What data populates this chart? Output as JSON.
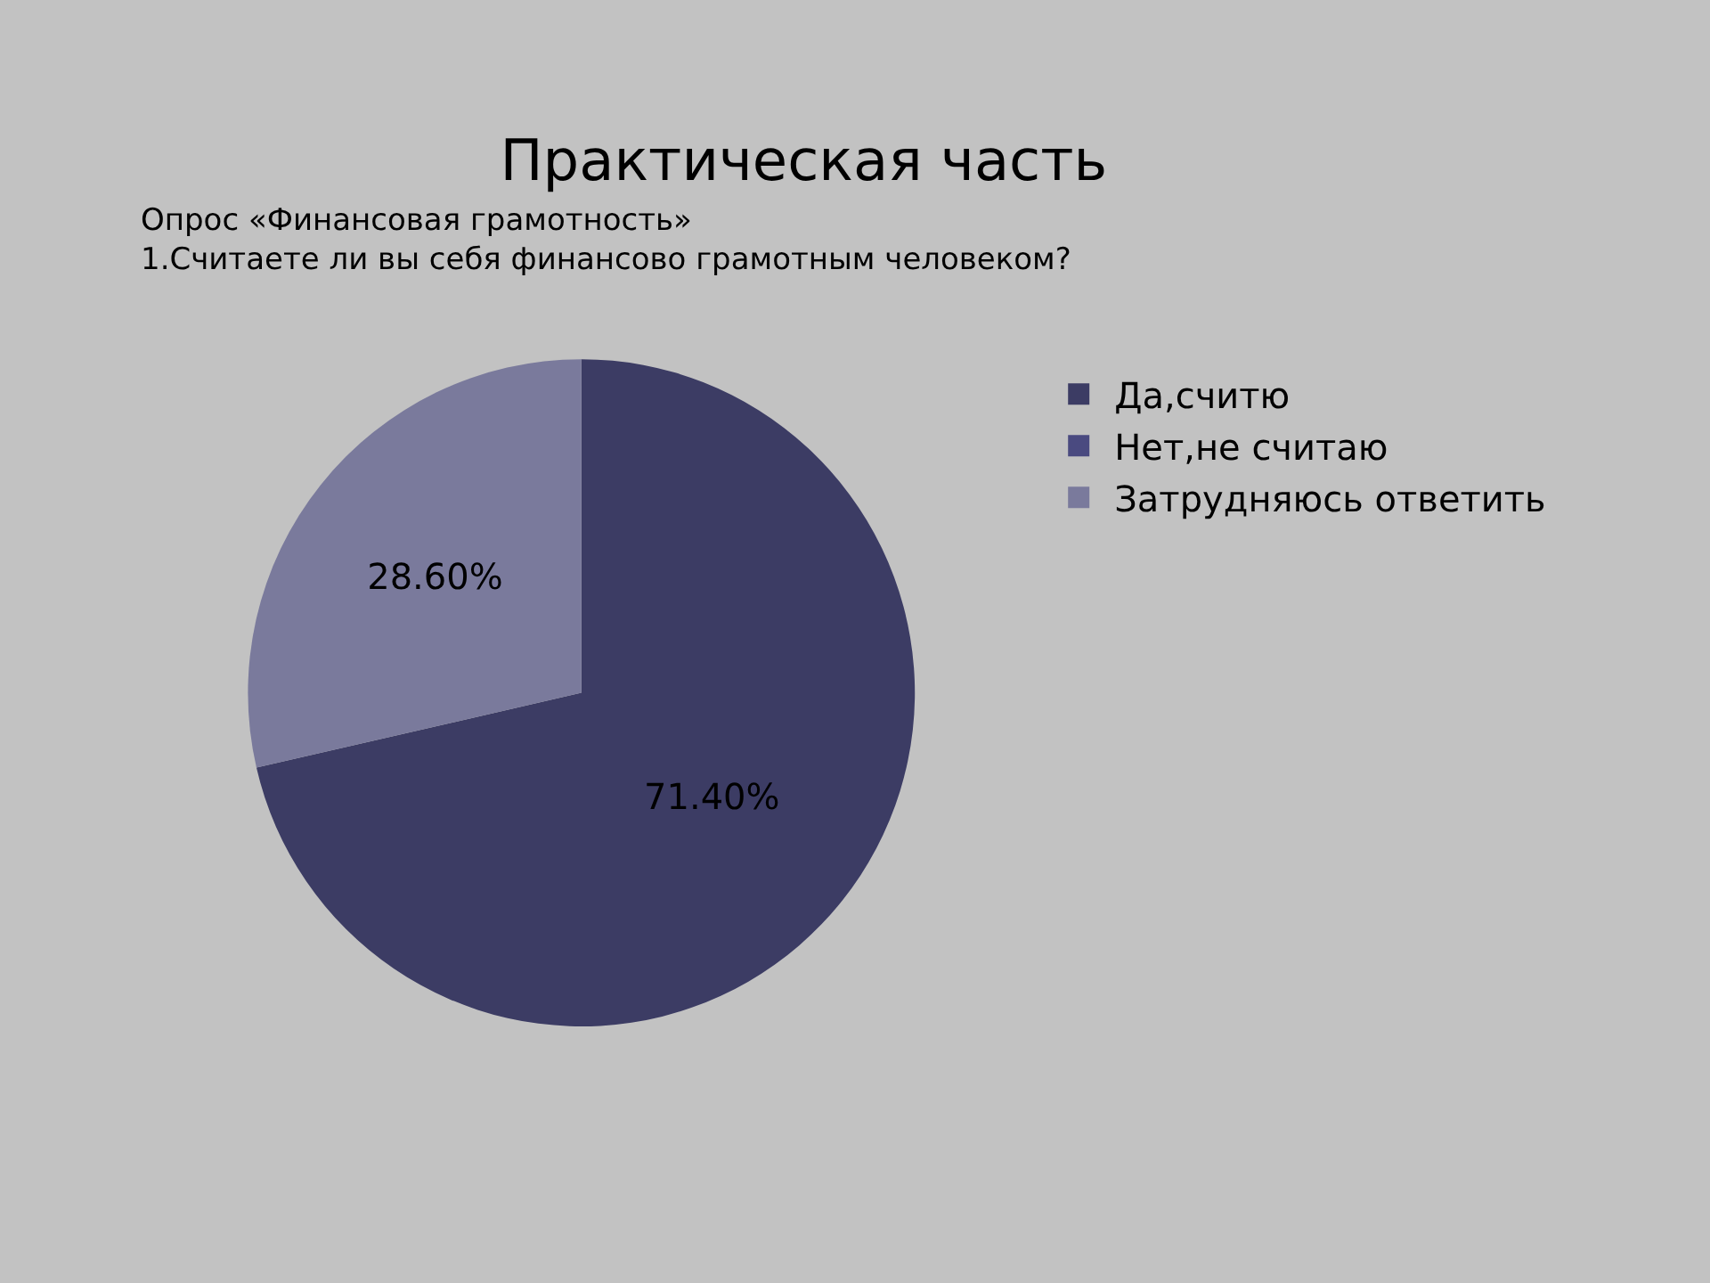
{
  "chart_data": {
    "type": "pie",
    "title": "Практическая часть",
    "subtitle": "Опрос «Финансовая грамотность»\n1.Считаете ли вы себя финансово грамотным человеком?",
    "categories": [
      "Да,считю",
      "Нет,не считаю",
      "Затрудняюсь ответить"
    ],
    "values": [
      71.4,
      0,
      28.6
    ],
    "value_labels": [
      "71.40%",
      null,
      "28.60%"
    ],
    "colors": [
      "#3c3c64",
      "#4a4a80",
      "#7a7a9c"
    ],
    "legend": "right"
  }
}
